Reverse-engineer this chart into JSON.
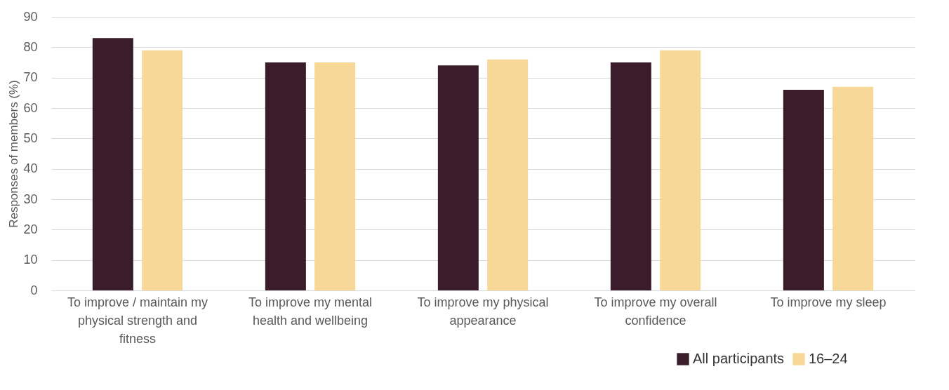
{
  "chart_data": {
    "type": "bar",
    "ylabel": "Responses of members (%)",
    "categories": [
      "To improve / maintain my physical strength and fitness",
      "To improve my mental health and wellbeing",
      "To improve my physical appearance",
      "To improve my overall confidence",
      "To improve my sleep"
    ],
    "series": [
      {
        "name": "All participants",
        "color": "#3b1c2a",
        "values": [
          83,
          75,
          74,
          75,
          66
        ]
      },
      {
        "name": "16–24",
        "color": "#f7d898",
        "values": [
          79,
          75,
          76,
          79,
          67
        ]
      }
    ],
    "ylim": [
      0,
      90
    ],
    "yticks": [
      0,
      10,
      20,
      30,
      40,
      50,
      60,
      70,
      80,
      90
    ],
    "grid": "y",
    "legend": "bottom right"
  }
}
